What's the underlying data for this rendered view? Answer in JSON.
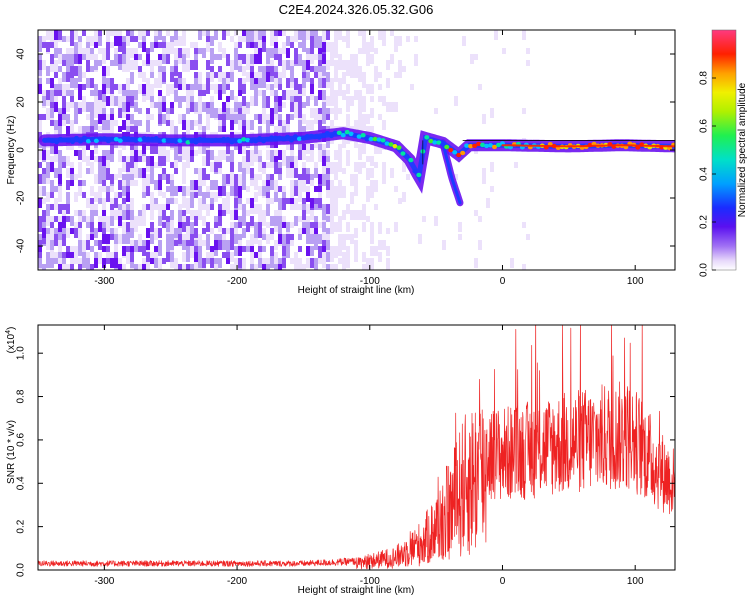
{
  "title": "C2E4.2024.326.05.32.G06",
  "colors": {
    "trace": "#ee2222",
    "palette": [
      "#ece1fb",
      "#b9a0f3",
      "#8a4ef0",
      "#6a12f0",
      "#1a3cff",
      "#00c0ff",
      "#00e6a0",
      "#3cf02a",
      "#e8e800",
      "#ff9a00",
      "#ff1e00",
      "#ff3a7a"
    ]
  },
  "chart_data": [
    {
      "type": "heatmap",
      "xlabel": "Height of straight line (km)",
      "ylabel": "Frequency (Hz)",
      "xlim": [
        -350,
        130
      ],
      "ylim": [
        -50,
        50
      ],
      "xticks": [
        -300,
        -200,
        -100,
        0,
        100
      ],
      "yticks": [
        -40,
        -20,
        0,
        20,
        40
      ],
      "grid": false,
      "colorbar": {
        "label": "Normalized spectral amplitude",
        "range": [
          0.0,
          1.0
        ],
        "ticks": [
          "0.0",
          "0.2",
          "0.4",
          "0.6",
          "0.8"
        ],
        "tick_values": [
          0.0,
          0.2,
          0.4,
          0.6,
          0.8
        ]
      },
      "ridge": [
        {
          "x": -345,
          "f": 4.0
        },
        {
          "x": -300,
          "f": 4.5
        },
        {
          "x": -250,
          "f": 4.0
        },
        {
          "x": -200,
          "f": 4.0
        },
        {
          "x": -150,
          "f": 5.0
        },
        {
          "x": -120,
          "f": 7.0
        },
        {
          "x": -100,
          "f": 5.0
        },
        {
          "x": -80,
          "f": 1.5
        },
        {
          "x": -70,
          "f": -4.0
        },
        {
          "x": -63,
          "f": -11.0
        },
        {
          "x": -58,
          "f": 5.0
        },
        {
          "x": -45,
          "f": 3.0
        },
        {
          "x": -33,
          "f": -2.0
        },
        {
          "x": -25,
          "f": 2.0
        },
        {
          "x": 0,
          "f": 2.0
        },
        {
          "x": 50,
          "f": 1.5
        },
        {
          "x": 90,
          "f": 2.0
        },
        {
          "x": 130,
          "f": 1.5
        }
      ],
      "branch": [
        {
          "x": -45,
          "f": 3.0
        },
        {
          "x": -38,
          "f": -12.0
        },
        {
          "x": -32,
          "f": -22.0
        }
      ]
    },
    {
      "type": "line",
      "xlabel": "Height of straight line (km)",
      "ylabel": "SNR (10 * v/v)",
      "multiplier": "(x10",
      "multiplier_exp": "4",
      "xlim": [
        -350,
        130
      ],
      "ylim": [
        0.0,
        1.13
      ],
      "xticks": [
        -300,
        -200,
        -100,
        0,
        100
      ],
      "yticks": [
        "0.0",
        "0.2",
        "0.4",
        "0.6",
        "0.8",
        "1.0"
      ],
      "ytick_values": [
        0.0,
        0.2,
        0.4,
        0.6,
        0.8,
        1.0
      ],
      "grid": false,
      "envelope": [
        {
          "x": -350,
          "y": 0.03
        },
        {
          "x": -150,
          "y": 0.03
        },
        {
          "x": -110,
          "y": 0.04
        },
        {
          "x": -80,
          "y": 0.08
        },
        {
          "x": -60,
          "y": 0.17
        },
        {
          "x": -50,
          "y": 0.26
        },
        {
          "x": -40,
          "y": 0.36
        },
        {
          "x": -30,
          "y": 0.5
        },
        {
          "x": -20,
          "y": 0.58
        },
        {
          "x": -15,
          "y": 0.6
        },
        {
          "x": -12,
          "y": 0.62
        },
        {
          "x": 0,
          "y": 0.62
        },
        {
          "x": 20,
          "y": 0.64
        },
        {
          "x": 40,
          "y": 0.67
        },
        {
          "x": 60,
          "y": 0.69
        },
        {
          "x": 80,
          "y": 0.71
        },
        {
          "x": 95,
          "y": 0.72
        },
        {
          "x": 105,
          "y": 0.66
        },
        {
          "x": 115,
          "y": 0.56
        },
        {
          "x": 130,
          "y": 0.46
        }
      ]
    }
  ]
}
